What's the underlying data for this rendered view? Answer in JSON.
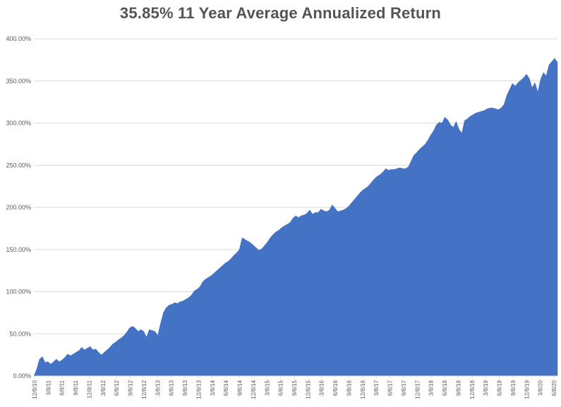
{
  "chart_data": {
    "type": "area",
    "title": "35.85% 11 Year Average Annualized Return",
    "xlabel": "",
    "ylabel": "",
    "ylim": [
      0,
      400
    ],
    "grid": "horizontal",
    "legend": "none",
    "y_tick_labels": [
      "0.00%",
      "50.00%",
      "100.00%",
      "150.00%",
      "200.00%",
      "250.00%",
      "300.00%",
      "350.00%",
      "400.00%"
    ],
    "x_tick_labels": [
      "12/8/10",
      "3/8/11",
      "6/8/11",
      "9/8/11",
      "12/8/11",
      "3/8/12",
      "6/8/12",
      "9/8/12",
      "12/8/12",
      "3/8/13",
      "6/8/13",
      "9/8/13",
      "12/8/13",
      "3/8/14",
      "6/8/14",
      "9/8/14",
      "12/8/14",
      "3/8/15",
      "6/8/15",
      "9/8/15",
      "12/8/15",
      "3/8/16",
      "6/8/16",
      "9/8/16",
      "12/8/16",
      "3/8/17",
      "6/8/17",
      "9/8/17",
      "12/8/17",
      "3/8/18",
      "6/8/18",
      "9/8/18",
      "12/8/18",
      "3/8/19",
      "6/8/19",
      "9/8/19",
      "12/8/19",
      "3/8/20",
      "6/8/20"
    ],
    "series": [
      {
        "unit": "percent_cumulative_return",
        "values": [
          0,
          8,
          20,
          23,
          16,
          17,
          14,
          17,
          20,
          17,
          19,
          22,
          26,
          24,
          26,
          28,
          30,
          34,
          31,
          33,
          35,
          31,
          32,
          28,
          25,
          28,
          31,
          34,
          38,
          40,
          43,
          45,
          48,
          52,
          57,
          59,
          57,
          53,
          55,
          53,
          46,
          55,
          54,
          53,
          48,
          62,
          75,
          81,
          84,
          85,
          87,
          86,
          88,
          89,
          91,
          93,
          96,
          101,
          103,
          106,
          112,
          115,
          117,
          119,
          122,
          125,
          128,
          131,
          134,
          136,
          139,
          143,
          146,
          150,
          164,
          162,
          160,
          158,
          155,
          152,
          149,
          151,
          155,
          159,
          164,
          168,
          171,
          173,
          176,
          178,
          180,
          182,
          187,
          190,
          188,
          190,
          191,
          193,
          197,
          192,
          194,
          194,
          198,
          196,
          195,
          197,
          203,
          199,
          195,
          196,
          197,
          199,
          202,
          206,
          210,
          214,
          218,
          221,
          223,
          226,
          230,
          234,
          237,
          239,
          242,
          246,
          244,
          245,
          245,
          246,
          247,
          246,
          246,
          248,
          255,
          262,
          265,
          269,
          272,
          275,
          280,
          286,
          291,
          298,
          301,
          300,
          307,
          304,
          298,
          295,
          302,
          293,
          288,
          303,
          305,
          308,
          310,
          312,
          313,
          314,
          315,
          317,
          318,
          318,
          317,
          316,
          318,
          322,
          333,
          340,
          347,
          344,
          348,
          351,
          354,
          358,
          353,
          342,
          348,
          337,
          352,
          360,
          356,
          369,
          373,
          377,
          372
        ]
      }
    ],
    "colors": {
      "area_fill": "#4472C4",
      "gridline": "#D9D9D9",
      "axis_line": "#D9D9D9",
      "axis_text": "#595959",
      "title_text": "#545454",
      "background": "#FFFFFF"
    }
  }
}
